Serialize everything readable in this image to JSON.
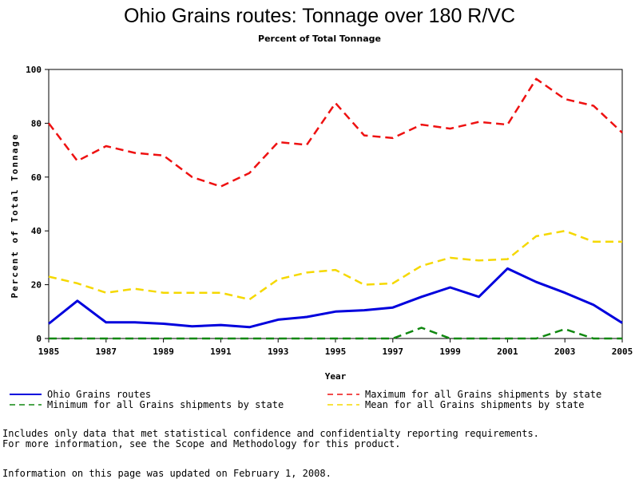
{
  "chart_data": {
    "type": "line",
    "title": "Ohio Grains routes: Tonnage over 180 R/VC",
    "subtitle": "Percent of Total Tonnage",
    "xlabel": "Year",
    "ylabel": "Percent of Total Tonnage",
    "xlim": [
      1985,
      2005
    ],
    "ylim": [
      0,
      100
    ],
    "x_ticks": [
      "1985",
      "1987",
      "1989",
      "1991",
      "1993",
      "1995",
      "1997",
      "1999",
      "2001",
      "2003",
      "2005"
    ],
    "y_ticks": [
      "0",
      "20",
      "40",
      "60",
      "80",
      "100"
    ],
    "x": [
      1985,
      1986,
      1987,
      1988,
      1989,
      1990,
      1991,
      1992,
      1993,
      1994,
      1995,
      1996,
      1997,
      1998,
      1999,
      2000,
      2001,
      2002,
      2003,
      2004,
      2005
    ],
    "series": [
      {
        "name": "Ohio Grains routes",
        "color": "#0000dd",
        "dash": "solid",
        "values": [
          5.5,
          14,
          6,
          6,
          5.5,
          4.5,
          5,
          4.2,
          7,
          8,
          10,
          10.5,
          11.5,
          15.5,
          19,
          15.5,
          26,
          21,
          17,
          12.5,
          5.8
        ]
      },
      {
        "name": "Maximum for all Grains shipments by state",
        "color": "#ee1111",
        "dash": "dashed",
        "values": [
          80,
          66,
          71.5,
          69,
          68,
          60,
          56.5,
          61.5,
          73,
          72,
          87.5,
          75.5,
          74.5,
          79.5,
          78,
          80.5,
          79.5,
          96.5,
          89,
          86.5,
          76.5
        ]
      },
      {
        "name": "Minimum for all Grains shipments by state",
        "color": "#118811",
        "dash": "dashed",
        "values": [
          0,
          0,
          0,
          0,
          0,
          0,
          0,
          0,
          0,
          0,
          0,
          0,
          0,
          4,
          0,
          0,
          0,
          0,
          3.5,
          0,
          0
        ]
      },
      {
        "name": "Mean for all Grains shipments by state",
        "color": "#f5d800",
        "dash": "dashed",
        "values": [
          23,
          20.5,
          17,
          18.5,
          17,
          17,
          17,
          14.5,
          22,
          24.5,
          25.5,
          20,
          20.5,
          27,
          30,
          29,
          29.5,
          38,
          40,
          36,
          36
        ]
      }
    ],
    "legend_order": [
      0,
      1,
      2,
      3
    ],
    "grid": false
  },
  "footnotes": {
    "line1": "Includes only data that met statistical confidence and confidentialty reporting requirements.",
    "line2": "For more information, see the Scope and Methodology for this product.",
    "updated": "Information on this page was updated on February 1, 2008."
  }
}
